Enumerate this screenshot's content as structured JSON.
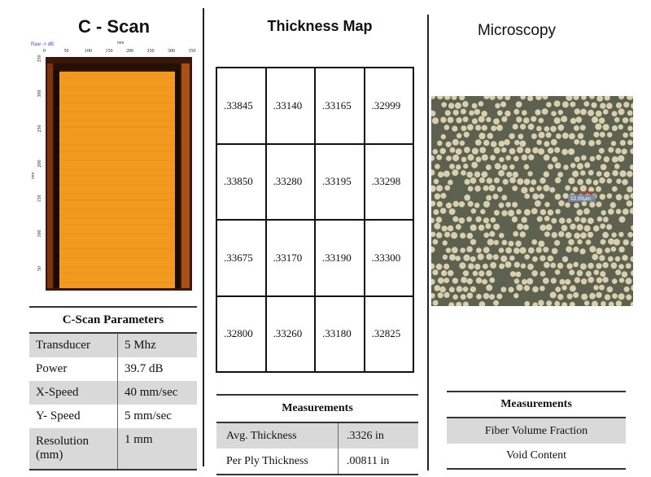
{
  "cscan": {
    "title": "C - Scan",
    "ruler_top_label": "mm",
    "ruler_left_label": "mm",
    "corner_label": "Raw -> dB",
    "x_ticks": [
      "0",
      "50",
      "100",
      "150",
      "200",
      "250",
      "300",
      "350"
    ],
    "y_ticks": [
      "350",
      "300",
      "250",
      "200",
      "150",
      "100",
      "50"
    ]
  },
  "params": {
    "title": "C-Scan Parameters",
    "rows": [
      {
        "label": "Transducer",
        "value": "5 Mhz"
      },
      {
        "label": "Power",
        "value": "39.7 dB"
      },
      {
        "label": "X-Speed",
        "value": "40 mm/sec"
      },
      {
        "label": "Y- Speed",
        "value": "5 mm/sec"
      },
      {
        "label": "Resolution (mm)",
        "value": "1 mm"
      }
    ]
  },
  "thickness": {
    "title": "Thickness Map",
    "grid": [
      [
        ".33845",
        ".33140",
        ".33165",
        ".32999"
      ],
      [
        ".33850",
        ".33280",
        ".33195",
        ".33298"
      ],
      [
        ".33675",
        ".33170",
        ".33190",
        ".33300"
      ],
      [
        ".32800",
        ".33260",
        ".33180",
        ".32825"
      ]
    ],
    "measurements": {
      "title": "Measurements",
      "rows": [
        {
          "label": "Avg. Thickness",
          "value": ".3326 in"
        },
        {
          "label": "Per Ply Thickness",
          "value": ".00811 in"
        }
      ]
    }
  },
  "microscopy": {
    "title": "Microscopy",
    "scale_label": "12.00µm",
    "measurements": {
      "title": "Measurements",
      "rows": [
        {
          "label": "Fiber Volume Fraction"
        },
        {
          "label": "Void Content"
        }
      ]
    }
  },
  "colors": {
    "cscan_fill": "#f29a1f",
    "cscan_border": "#3a1608",
    "micro_bg": "#5c6150",
    "fiber": "#d8cfae",
    "table_shade": "#d9d9d9"
  }
}
